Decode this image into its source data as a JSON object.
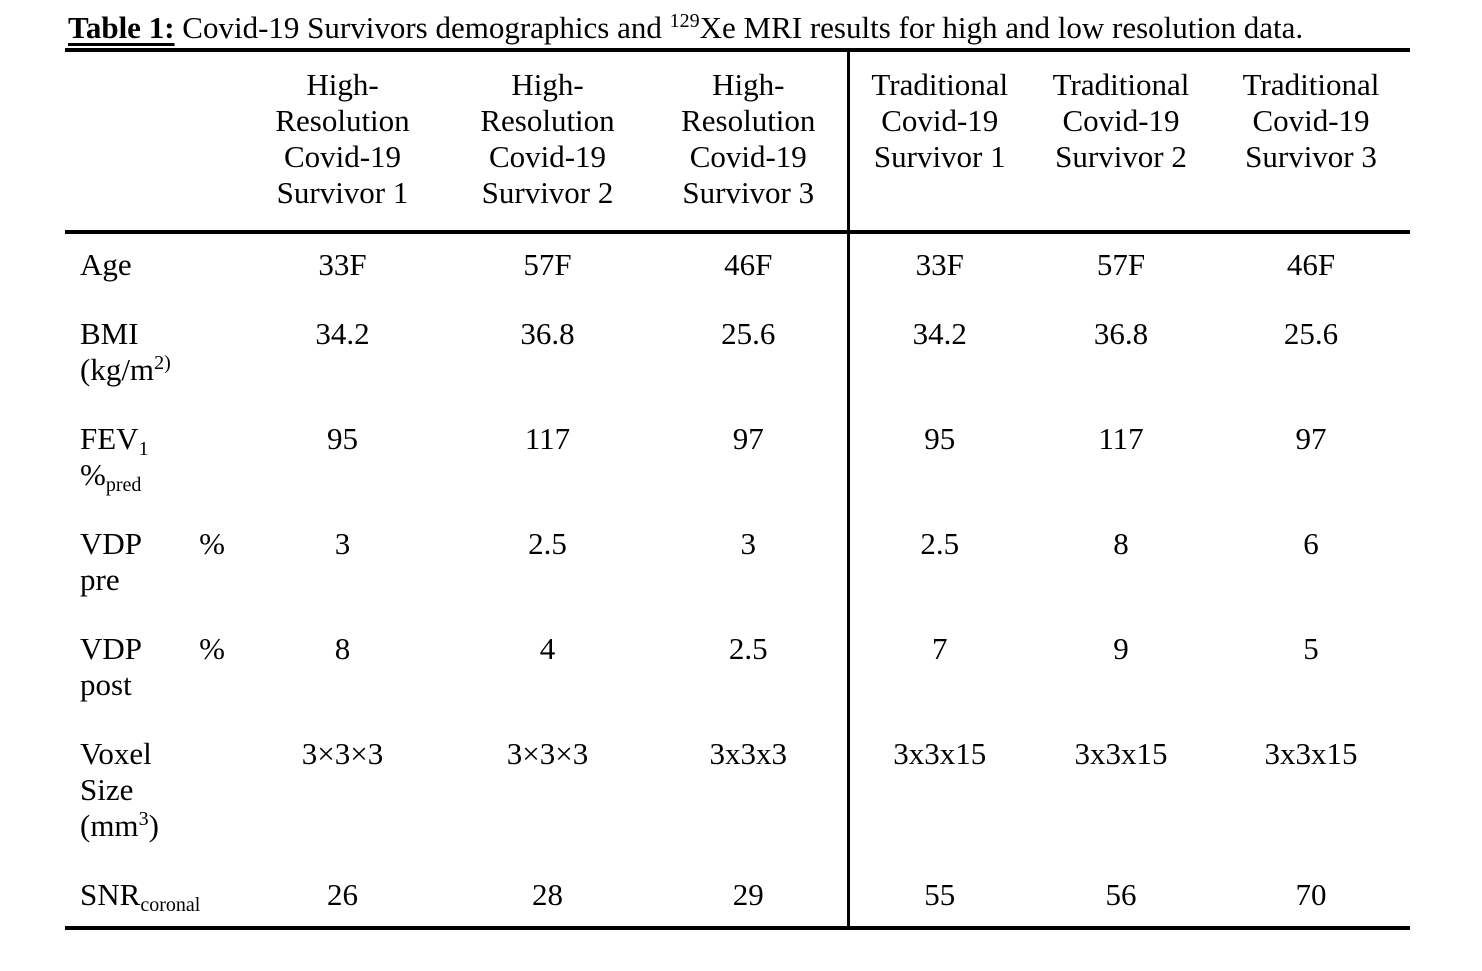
{
  "title": {
    "bold": "Table 1:",
    "pre_isotope": " Covid-19 Survivors demographics and ",
    "isotope": "129",
    "post_isotope": "Xe MRI results for high and low resolution data."
  },
  "colors": {
    "text": "#000000",
    "background": "#ffffff",
    "rule": "#000000"
  },
  "table": {
    "columns": [
      {
        "id": "high-res-survivor-1",
        "lines": [
          "High-",
          "Resolution",
          "Covid-19",
          "Survivor 1"
        ]
      },
      {
        "id": "high-res-survivor-2",
        "lines": [
          "High-",
          "Resolution",
          "Covid-19",
          "Survivor 2"
        ]
      },
      {
        "id": "high-res-survivor-3",
        "lines": [
          "High-",
          "Resolution",
          "Covid-19",
          "Survivor 3"
        ]
      },
      {
        "id": "traditional-survivor-1",
        "lines": [
          "Traditional",
          "Covid-19",
          "Survivor 1"
        ]
      },
      {
        "id": "traditional-survivor-2",
        "lines": [
          "Traditional",
          "Covid-19",
          "Survivor 2"
        ]
      },
      {
        "id": "traditional-survivor-3",
        "lines": [
          "Traditional",
          "Covid-19",
          "Survivor 3"
        ]
      }
    ],
    "rows": [
      {
        "id": "age",
        "label_lines": [
          [
            {
              "t": "Age"
            }
          ]
        ],
        "values": [
          "33F",
          "57F",
          "46F",
          "33F",
          "57F",
          "46F"
        ]
      },
      {
        "id": "bmi",
        "label_lines": [
          [
            {
              "t": "BMI"
            }
          ],
          [
            {
              "t": "(kg/m"
            },
            {
              "t": "2)",
              "s": "sup"
            }
          ]
        ],
        "values": [
          "34.2",
          "36.8",
          "25.6",
          "34.2",
          "36.8",
          "25.6"
        ]
      },
      {
        "id": "fev1-pct-pred",
        "label_lines": [
          [
            {
              "t": "FEV"
            },
            {
              "t": "1",
              "s": "sub"
            }
          ],
          [
            {
              "t": "%"
            },
            {
              "t": "pred",
              "s": "sub"
            }
          ]
        ],
        "values": [
          "95",
          "117",
          "97",
          "95",
          "117",
          "97"
        ]
      },
      {
        "id": "vdp-pct-pre",
        "justify": [
          0
        ],
        "label_lines": [
          [
            {
              "t": "VDP"
            },
            {
              "t": "%"
            }
          ],
          [
            {
              "t": "pre"
            }
          ]
        ],
        "values": [
          "3",
          "2.5",
          "3",
          "2.5",
          "8",
          "6"
        ]
      },
      {
        "id": "vdp-pct-post",
        "justify": [
          0
        ],
        "label_lines": [
          [
            {
              "t": "VDP"
            },
            {
              "t": "%"
            }
          ],
          [
            {
              "t": "post"
            }
          ]
        ],
        "values": [
          "8",
          "4",
          "2.5",
          "7",
          "9",
          "5"
        ]
      },
      {
        "id": "voxel-size",
        "label_lines": [
          [
            {
              "t": "Voxel"
            }
          ],
          [
            {
              "t": "Size"
            }
          ],
          [
            {
              "t": "(mm"
            },
            {
              "t": "3",
              "s": "sup"
            },
            {
              "t": ")"
            }
          ]
        ],
        "values": [
          "3×3×3",
          "3×3×3",
          "3x3x3",
          "3x3x15",
          "3x3x15",
          "3x3x15"
        ]
      },
      {
        "id": "snr-coronal",
        "label_lines": [
          [
            {
              "t": "SNR"
            },
            {
              "t": "coronal",
              "s": "sub"
            }
          ]
        ],
        "values": [
          "26",
          "28",
          "29",
          "55",
          "56",
          "70"
        ]
      }
    ]
  }
}
